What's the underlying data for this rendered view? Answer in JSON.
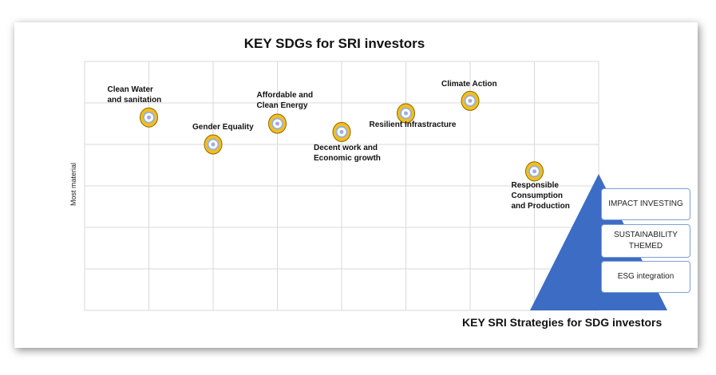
{
  "chart_data": {
    "type": "scatter",
    "title": "KEY SDGs for SRI investors",
    "ylabel": "Most material",
    "xlabel": "",
    "grid": true,
    "xlim": [
      0,
      8
    ],
    "ylim": [
      0,
      6
    ],
    "points": [
      {
        "label": "Clean Water\n and sanitation",
        "x": 1,
        "y": 4.65
      },
      {
        "label": "Gender Equality",
        "x": 2,
        "y": 4.0
      },
      {
        "label": "Affordable and\nClean Energy",
        "x": 3,
        "y": 4.5
      },
      {
        "label": "Decent work and\nEconomic growth",
        "x": 4,
        "y": 4.3
      },
      {
        "label": "Resilient Infrastracture",
        "x": 5,
        "y": 4.75
      },
      {
        "label": "Climate Action",
        "x": 6,
        "y": 5.05
      },
      {
        "label": "Responsible\nConsumption\nand Production",
        "x": 7,
        "y": 3.35
      }
    ],
    "marker_color": "#f5be1e",
    "marker_inner_color": "#9ab0d8"
  },
  "strategies": {
    "title": "KEY SRI Strategies for SDG investors",
    "items": [
      "IMPACT INVESTING",
      "SUSTAINABILITY\nTHEMED",
      "ESG integration"
    ],
    "pyramid_color": "#3d6cc4"
  }
}
